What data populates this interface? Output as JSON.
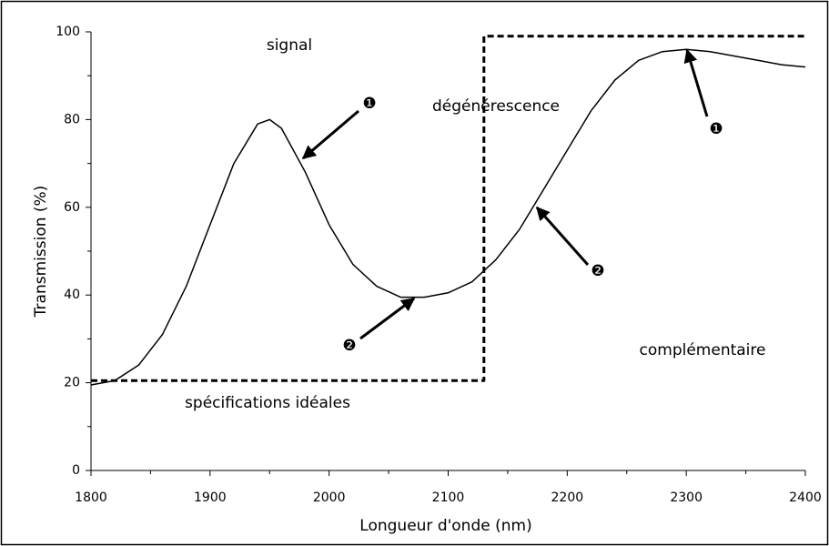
{
  "chart_data": {
    "type": "line",
    "xlabel": "Longueur d'onde (nm)",
    "ylabel": "Transmission (%)",
    "xlim": [
      1800,
      2400
    ],
    "xticks": [
      1800,
      1900,
      2000,
      2100,
      2200,
      2300,
      2400
    ],
    "ylim": [
      0,
      100
    ],
    "yticks": [
      0,
      20,
      40,
      60,
      80,
      100
    ],
    "annotations": [
      "signal",
      "dégénérescence",
      "complémentaire",
      "spécifications idéales",
      "❶",
      "❶",
      "❷",
      "❷"
    ],
    "series": [
      {
        "color": "#000000",
        "dash": false,
        "x": [
          1800,
          1820,
          1840,
          1860,
          1880,
          1900,
          1920,
          1940,
          1950,
          1960,
          1980,
          2000,
          2020,
          2040,
          2060,
          2080,
          2100,
          2120,
          2140,
          2160,
          2180,
          2200,
          2220,
          2240,
          2260,
          2280,
          2300,
          2320,
          2340,
          2360,
          2380,
          2400
        ],
        "values": [
          19.5,
          20.5,
          24,
          31,
          42,
          56,
          70,
          79,
          80,
          78,
          68,
          56,
          47,
          42,
          39.5,
          39.5,
          40.5,
          43,
          48,
          55,
          64,
          73,
          82,
          89,
          93.5,
          95.5,
          96,
          95.5,
          94.5,
          93.5,
          92.5,
          92
        ]
      },
      {
        "color": "#000000",
        "dash": true,
        "x": [
          1800,
          2130,
          2130,
          2400
        ],
        "values": [
          20.5,
          20.5,
          99,
          99
        ]
      }
    ]
  }
}
